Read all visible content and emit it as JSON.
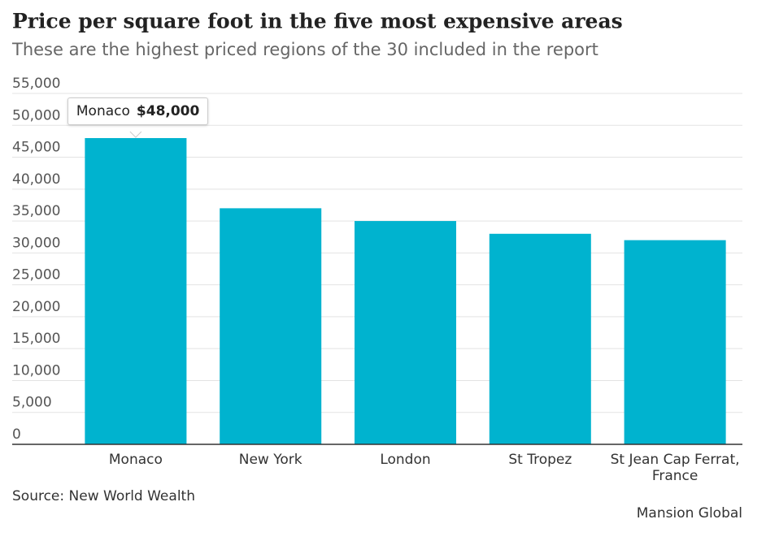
{
  "chart_data": {
    "type": "bar",
    "title": "Price per square foot in the five most expensive areas",
    "subtitle": "These are the highest priced regions of the 30 included in the report",
    "categories": [
      "Monaco",
      "New York",
      "London",
      "St Tropez",
      "St Jean Cap Ferrat, France"
    ],
    "values": [
      48000,
      37000,
      35000,
      33000,
      32000
    ],
    "value_labels": [
      "$48,000",
      null,
      null,
      null,
      null
    ],
    "color": "#00b3cf",
    "ylim": [
      0,
      55000
    ],
    "yticks": [
      0,
      {
        "value": 5000,
        "label": "5,000"
      },
      {
        "value": 10000,
        "label": "10,000"
      },
      {
        "value": 15000,
        "label": "15,000"
      },
      {
        "value": 20000,
        "label": "20,000"
      },
      {
        "value": 25000,
        "label": "25,000"
      },
      {
        "value": 30000,
        "label": "30,000"
      },
      {
        "value": 35000,
        "label": "35,000"
      },
      {
        "value": 40000,
        "label": "40,000"
      },
      {
        "value": 45000,
        "label": "45,000"
      },
      {
        "value": 50000,
        "label": "50,000"
      },
      {
        "value": 55000,
        "label": "55,000"
      }
    ],
    "grid": true,
    "source": "Source: New World Wealth",
    "credit": "Mansion Global"
  }
}
